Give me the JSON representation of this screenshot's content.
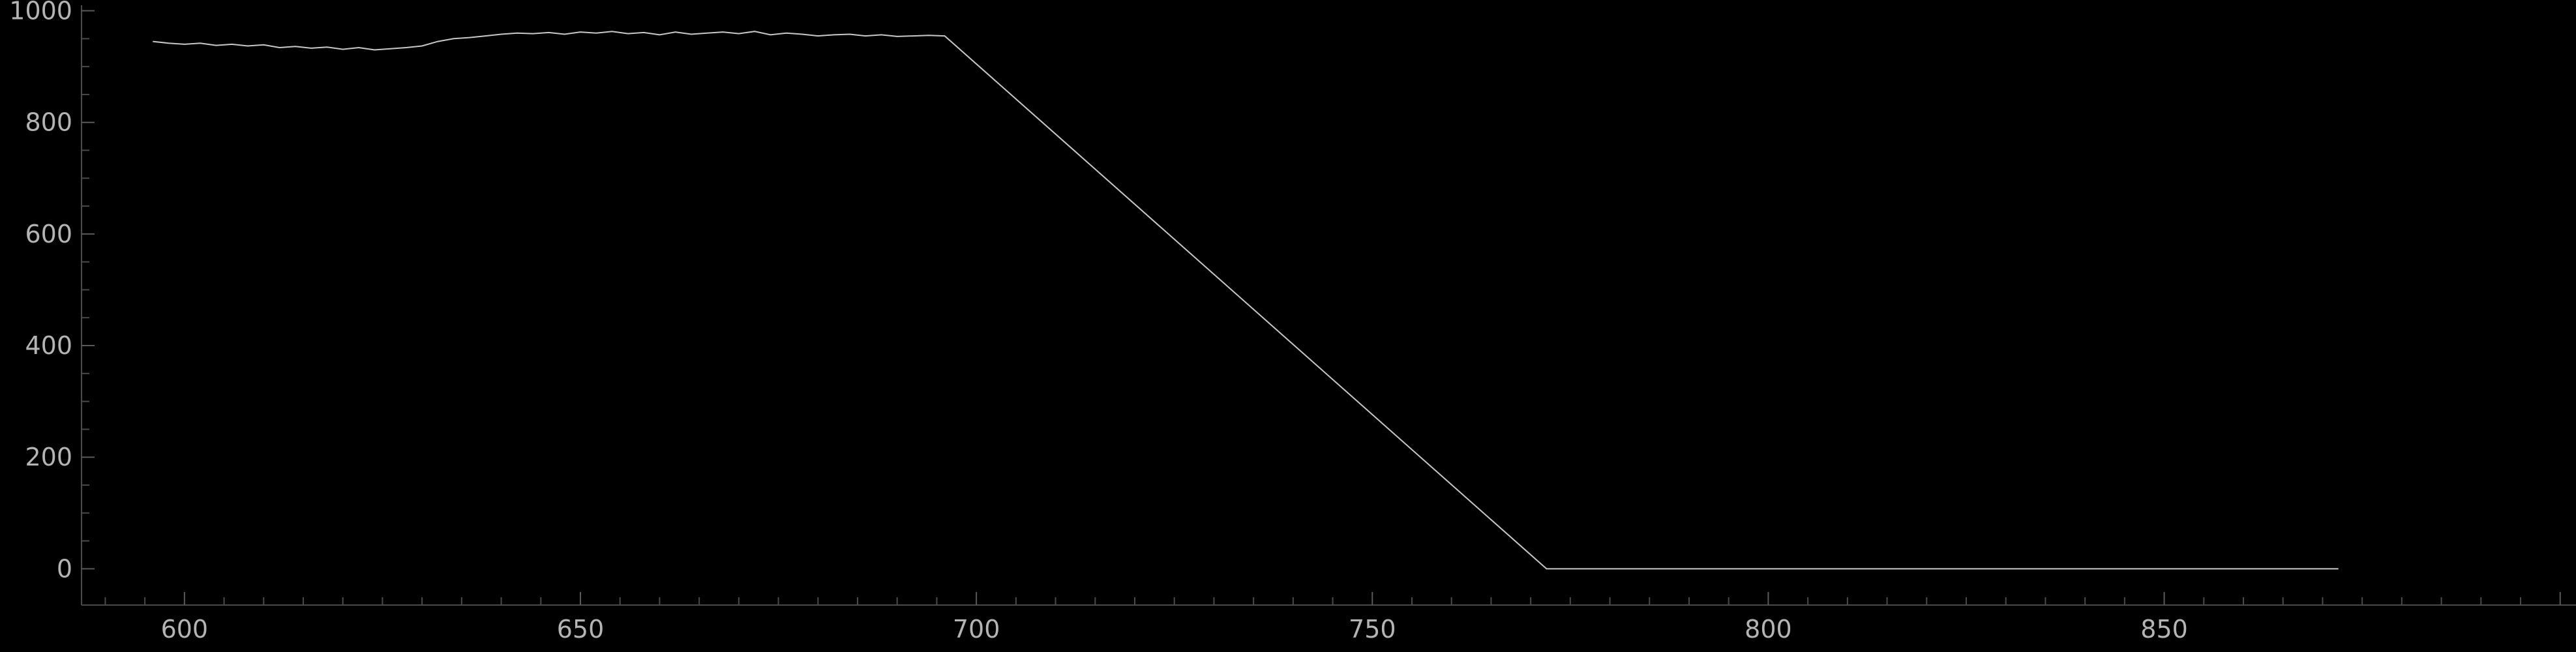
{
  "chart_data": {
    "type": "line",
    "title": "",
    "xlabel": "",
    "ylabel": "",
    "xlim": [
      587,
      902
    ],
    "ylim": [
      -65,
      1010
    ],
    "grid": false,
    "x_ticks": [
      "600",
      "650",
      "700",
      "750",
      "800",
      "850"
    ],
    "y_ticks": [
      "0",
      "200",
      "400",
      "600",
      "800",
      "1000"
    ],
    "colors": {
      "background": "#000000",
      "line": "#c8c8c8",
      "axis": "#4a4a4a",
      "text": "#b4b4b4"
    },
    "series": [
      {
        "x": [
          596,
          598,
          600,
          602,
          604,
          606,
          608,
          610,
          612,
          614,
          616,
          618,
          620,
          622,
          624,
          626,
          628,
          630,
          632,
          634,
          636,
          638,
          640,
          642,
          644,
          646,
          648,
          650,
          652,
          654,
          656,
          658,
          660,
          662,
          664,
          666,
          668,
          670,
          672,
          674,
          676,
          678,
          680,
          682,
          684,
          686,
          688,
          690,
          692,
          694,
          696,
          772,
          872
        ],
        "y": [
          945,
          942,
          940,
          942,
          938,
          940,
          937,
          939,
          934,
          936,
          933,
          935,
          931,
          934,
          930,
          932,
          934,
          937,
          945,
          950,
          952,
          955,
          958,
          960,
          959,
          961,
          958,
          962,
          960,
          963,
          959,
          961,
          957,
          962,
          958,
          960,
          962,
          959,
          963,
          957,
          960,
          958,
          955,
          957,
          958,
          955,
          957,
          954,
          955,
          956,
          955,
          0,
          0
        ]
      }
    ]
  }
}
